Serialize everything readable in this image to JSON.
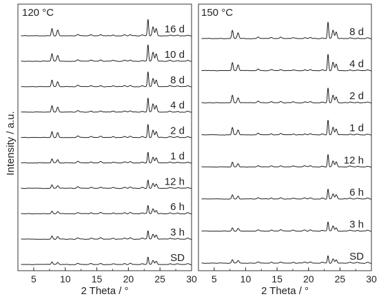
{
  "chart_data": [
    {
      "type": "line",
      "title": "120 °C",
      "xlabel": "2 Theta / °",
      "ylabel": "Intensity / a.u.",
      "xlim": [
        2.5,
        30
      ],
      "xticks": [
        "5",
        "10",
        "15",
        "20",
        "25",
        "30"
      ],
      "y_scale": "arbitrary units, traces vertically offset",
      "grid": false,
      "series": [
        {
          "name": "16 d",
          "peaks": [
            {
              "x": 7.9,
              "y": 0.45
            },
            {
              "x": 8.8,
              "y": 0.35
            },
            {
              "x": 23.1,
              "y": 1.0
            },
            {
              "x": 23.9,
              "y": 0.55
            },
            {
              "x": 24.4,
              "y": 0.45
            }
          ]
        },
        {
          "name": "10 d",
          "peaks": [
            {
              "x": 7.9,
              "y": 0.45
            },
            {
              "x": 8.8,
              "y": 0.35
            },
            {
              "x": 23.1,
              "y": 1.0
            },
            {
              "x": 23.9,
              "y": 0.55
            },
            {
              "x": 24.4,
              "y": 0.45
            }
          ]
        },
        {
          "name": "8 d",
          "peaks": [
            {
              "x": 7.9,
              "y": 0.4
            },
            {
              "x": 8.8,
              "y": 0.3
            },
            {
              "x": 23.1,
              "y": 0.9
            },
            {
              "x": 23.9,
              "y": 0.5
            },
            {
              "x": 24.4,
              "y": 0.4
            }
          ]
        },
        {
          "name": "4 d",
          "peaks": [
            {
              "x": 7.9,
              "y": 0.4
            },
            {
              "x": 8.8,
              "y": 0.3
            },
            {
              "x": 23.1,
              "y": 0.85
            },
            {
              "x": 23.9,
              "y": 0.5
            },
            {
              "x": 24.4,
              "y": 0.4
            }
          ]
        },
        {
          "name": "2 d",
          "peaks": [
            {
              "x": 7.9,
              "y": 0.35
            },
            {
              "x": 8.8,
              "y": 0.3
            },
            {
              "x": 23.1,
              "y": 0.8
            },
            {
              "x": 23.9,
              "y": 0.45
            },
            {
              "x": 24.4,
              "y": 0.35
            }
          ]
        },
        {
          "name": "1 d",
          "peaks": [
            {
              "x": 7.9,
              "y": 0.25
            },
            {
              "x": 8.8,
              "y": 0.2
            },
            {
              "x": 23.1,
              "y": 0.65
            },
            {
              "x": 23.9,
              "y": 0.35
            },
            {
              "x": 24.4,
              "y": 0.3
            }
          ]
        },
        {
          "name": "12 h",
          "peaks": [
            {
              "x": 7.9,
              "y": 0.2
            },
            {
              "x": 8.8,
              "y": 0.15
            },
            {
              "x": 23.1,
              "y": 0.5
            },
            {
              "x": 23.9,
              "y": 0.3
            },
            {
              "x": 24.4,
              "y": 0.25
            }
          ]
        },
        {
          "name": "6 h",
          "peaks": [
            {
              "x": 7.9,
              "y": 0.15
            },
            {
              "x": 8.8,
              "y": 0.12
            },
            {
              "x": 23.1,
              "y": 0.5
            },
            {
              "x": 23.9,
              "y": 0.3
            },
            {
              "x": 24.4,
              "y": 0.2
            }
          ]
        },
        {
          "name": "3 h",
          "peaks": [
            {
              "x": 7.9,
              "y": 0.2
            },
            {
              "x": 8.8,
              "y": 0.15
            },
            {
              "x": 23.1,
              "y": 0.5
            },
            {
              "x": 23.9,
              "y": 0.3
            },
            {
              "x": 24.4,
              "y": 0.25
            }
          ]
        },
        {
          "name": "SD",
          "peaks": [
            {
              "x": 7.9,
              "y": 0.15
            },
            {
              "x": 8.8,
              "y": 0.12
            },
            {
              "x": 23.1,
              "y": 0.45
            },
            {
              "x": 23.9,
              "y": 0.25
            },
            {
              "x": 24.4,
              "y": 0.2
            }
          ]
        }
      ]
    },
    {
      "type": "line",
      "title": "150 °C",
      "xlabel": "2 Theta / °",
      "ylabel": "",
      "xlim": [
        2.5,
        30
      ],
      "xticks": [
        "5",
        "10",
        "15",
        "20",
        "25",
        "30"
      ],
      "y_scale": "arbitrary units, traces vertically offset",
      "grid": false,
      "series": [
        {
          "name": "8 d",
          "peaks": [
            {
              "x": 7.9,
              "y": 0.5
            },
            {
              "x": 8.8,
              "y": 0.35
            },
            {
              "x": 23.1,
              "y": 1.0
            },
            {
              "x": 23.9,
              "y": 0.5
            },
            {
              "x": 24.4,
              "y": 0.4
            }
          ]
        },
        {
          "name": "4 d",
          "peaks": [
            {
              "x": 7.9,
              "y": 0.5
            },
            {
              "x": 8.8,
              "y": 0.35
            },
            {
              "x": 23.1,
              "y": 1.0
            },
            {
              "x": 23.9,
              "y": 0.5
            },
            {
              "x": 24.4,
              "y": 0.4
            }
          ]
        },
        {
          "name": "2 d",
          "peaks": [
            {
              "x": 7.9,
              "y": 0.45
            },
            {
              "x": 8.8,
              "y": 0.3
            },
            {
              "x": 23.1,
              "y": 0.9
            },
            {
              "x": 23.9,
              "y": 0.45
            },
            {
              "x": 24.4,
              "y": 0.35
            }
          ]
        },
        {
          "name": "1 d",
          "peaks": [
            {
              "x": 7.9,
              "y": 0.45
            },
            {
              "x": 8.8,
              "y": 0.3
            },
            {
              "x": 23.1,
              "y": 0.9
            },
            {
              "x": 23.9,
              "y": 0.45
            },
            {
              "x": 24.4,
              "y": 0.35
            }
          ]
        },
        {
          "name": "12 h",
          "peaks": [
            {
              "x": 7.9,
              "y": 0.3
            },
            {
              "x": 8.8,
              "y": 0.2
            },
            {
              "x": 23.1,
              "y": 0.75
            },
            {
              "x": 23.9,
              "y": 0.35
            },
            {
              "x": 24.4,
              "y": 0.3
            }
          ]
        },
        {
          "name": "6 h",
          "peaks": [
            {
              "x": 7.9,
              "y": 0.25
            },
            {
              "x": 8.8,
              "y": 0.18
            },
            {
              "x": 23.1,
              "y": 0.6
            },
            {
              "x": 23.9,
              "y": 0.3
            },
            {
              "x": 24.4,
              "y": 0.25
            }
          ]
        },
        {
          "name": "3 h",
          "peaks": [
            {
              "x": 7.9,
              "y": 0.2
            },
            {
              "x": 8.8,
              "y": 0.15
            },
            {
              "x": 23.1,
              "y": 0.55
            },
            {
              "x": 23.9,
              "y": 0.3
            },
            {
              "x": 24.4,
              "y": 0.2
            }
          ]
        },
        {
          "name": "SD",
          "peaks": [
            {
              "x": 7.9,
              "y": 0.2
            },
            {
              "x": 8.8,
              "y": 0.15
            },
            {
              "x": 23.1,
              "y": 0.45
            },
            {
              "x": 23.9,
              "y": 0.25
            },
            {
              "x": 24.4,
              "y": 0.2
            }
          ]
        }
      ]
    }
  ]
}
